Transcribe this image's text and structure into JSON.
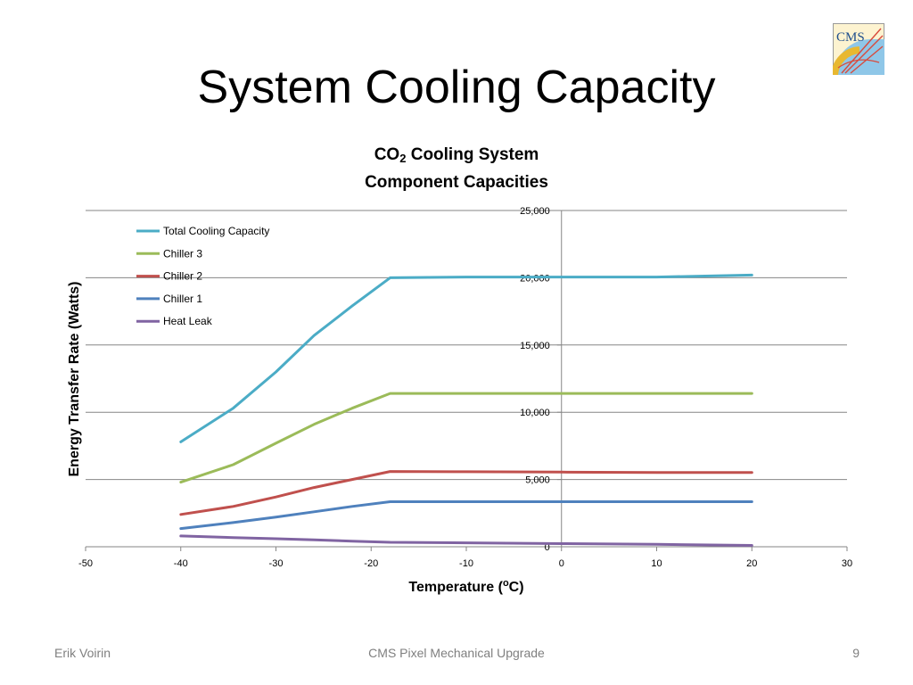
{
  "slide": {
    "title": "System Cooling Capacity",
    "logo_text": "CMS"
  },
  "footer": {
    "author": "Erik Voirin",
    "project": "CMS Pixel Mechanical Upgrade",
    "page": "9"
  },
  "colors": {
    "total": "#4BACC6",
    "chiller3": "#9BBB59",
    "chiller2": "#C0504D",
    "chiller1": "#4F81BD",
    "heat_leak": "#8064A2",
    "gridline": "#868686",
    "axis": "#868686"
  },
  "chart_data": {
    "type": "line",
    "title_main": "CO",
    "title_sub": "2",
    "title_rest": " Cooling System",
    "title_line2": "Component Capacities",
    "xlabel_main": "Temperature (",
    "xlabel_sup": "o",
    "xlabel_rest": "C)",
    "ylabel": "Energy Transfer Rate (Watts)",
    "xlim": [
      -50,
      30
    ],
    "ylim": [
      0,
      25000
    ],
    "x_ticks": [
      -50,
      -40,
      -30,
      -20,
      -10,
      0,
      10,
      20,
      30
    ],
    "y_ticks": [
      0,
      5000,
      10000,
      15000,
      20000,
      25000
    ],
    "y_tick_labels": [
      "0",
      "5,000",
      "10,000",
      "15,000",
      "20,000",
      "25,000"
    ],
    "grid": true,
    "legend_position": "top-left",
    "series": [
      {
        "key": "total",
        "name": "Total Cooling Capacity",
        "x": [
          -40,
          -34.5,
          -30,
          -26,
          -22,
          -18,
          -10,
          0,
          10,
          20
        ],
        "y": [
          7800,
          10300,
          13000,
          15700,
          17900,
          20000,
          20050,
          20050,
          20050,
          20200
        ]
      },
      {
        "key": "chiller3",
        "name": "Chiller 3",
        "x": [
          -40,
          -34.5,
          -30,
          -26,
          -22,
          -18,
          -10,
          0,
          10,
          20
        ],
        "y": [
          4800,
          6100,
          7700,
          9100,
          10300,
          11400,
          11400,
          11400,
          11400,
          11400
        ]
      },
      {
        "key": "chiller2",
        "name": "Chiller 2",
        "x": [
          -40,
          -34.5,
          -30,
          -26,
          -22,
          -18,
          -10,
          0,
          10,
          20
        ],
        "y": [
          2400,
          3000,
          3700,
          4400,
          5000,
          5600,
          5580,
          5550,
          5520,
          5520
        ]
      },
      {
        "key": "chiller1",
        "name": "Chiller 1",
        "x": [
          -40,
          -34.5,
          -30,
          -26,
          -22,
          -18,
          -10,
          0,
          10,
          20
        ],
        "y": [
          1350,
          1800,
          2200,
          2600,
          3000,
          3350,
          3350,
          3350,
          3350,
          3350
        ]
      },
      {
        "key": "heat_leak",
        "name": "Heat Leak",
        "x": [
          -40,
          -34.5,
          -30,
          -26,
          -22,
          -18,
          -10,
          0,
          10,
          20
        ],
        "y": [
          800,
          680,
          600,
          520,
          420,
          330,
          290,
          230,
          180,
          100
        ]
      }
    ]
  }
}
